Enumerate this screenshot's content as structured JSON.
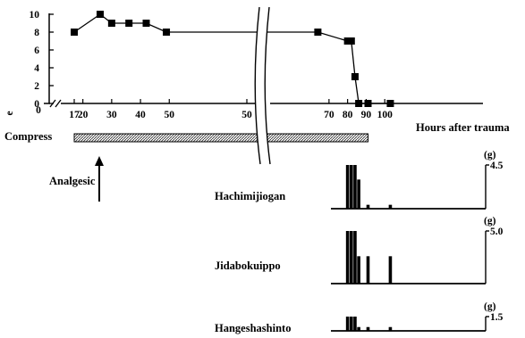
{
  "chart_data": [
    {
      "type": "line",
      "xlabel": "Hours after trauma",
      "ylabel": "e",
      "ylim": [
        0,
        10
      ],
      "y_ticks": [
        "0",
        "2",
        "4",
        "6",
        "8",
        "10"
      ],
      "x_ticks": [
        "17",
        "20",
        "30",
        "40",
        "50",
        "50",
        "70",
        "80",
        "90",
        "100"
      ],
      "x_axis_broken": true,
      "grid": false,
      "points": [
        {
          "x": 17,
          "y": 8
        },
        {
          "x": 26,
          "y": 10
        },
        {
          "x": 30,
          "y": 9
        },
        {
          "x": 36,
          "y": 9
        },
        {
          "x": 42,
          "y": 9
        },
        {
          "x": 49,
          "y": 8
        },
        {
          "x": 64,
          "y": 8
        },
        {
          "x": 80,
          "y": 7
        },
        {
          "x": 82,
          "y": 7
        },
        {
          "x": 84,
          "y": 3
        },
        {
          "x": 86,
          "y": 0
        },
        {
          "x": 91,
          "y": 0
        },
        {
          "x": 103,
          "y": 0
        }
      ]
    },
    {
      "type": "bar",
      "name": "Hachimijiogan",
      "unit": "(g)",
      "max_label": "4.5",
      "ylim": [
        0,
        4.5
      ],
      "x": [
        80,
        82,
        84,
        86,
        91,
        103
      ],
      "values": [
        4.5,
        4.5,
        4.5,
        3.0,
        0.4,
        0.4
      ]
    },
    {
      "type": "bar",
      "name": "Jidabokuippo",
      "unit": "(g)",
      "max_label": "5.0",
      "ylim": [
        0,
        5.0
      ],
      "x": [
        80,
        82,
        84,
        86,
        91,
        103
      ],
      "values": [
        5.0,
        5.0,
        5.0,
        2.6,
        2.6,
        2.6
      ]
    },
    {
      "type": "bar",
      "name": "Hangeshashinto",
      "unit": "(g)",
      "max_label": "1.5",
      "ylim": [
        0,
        1.5
      ],
      "x": [
        80,
        82,
        84,
        86,
        91,
        103
      ],
      "values": [
        1.5,
        1.5,
        1.5,
        0.4,
        0.4,
        0.4
      ]
    }
  ],
  "compress": {
    "label": "Compress",
    "start": 17,
    "end": 91
  },
  "analgesic": {
    "label": "Analgesic",
    "at": 26
  }
}
